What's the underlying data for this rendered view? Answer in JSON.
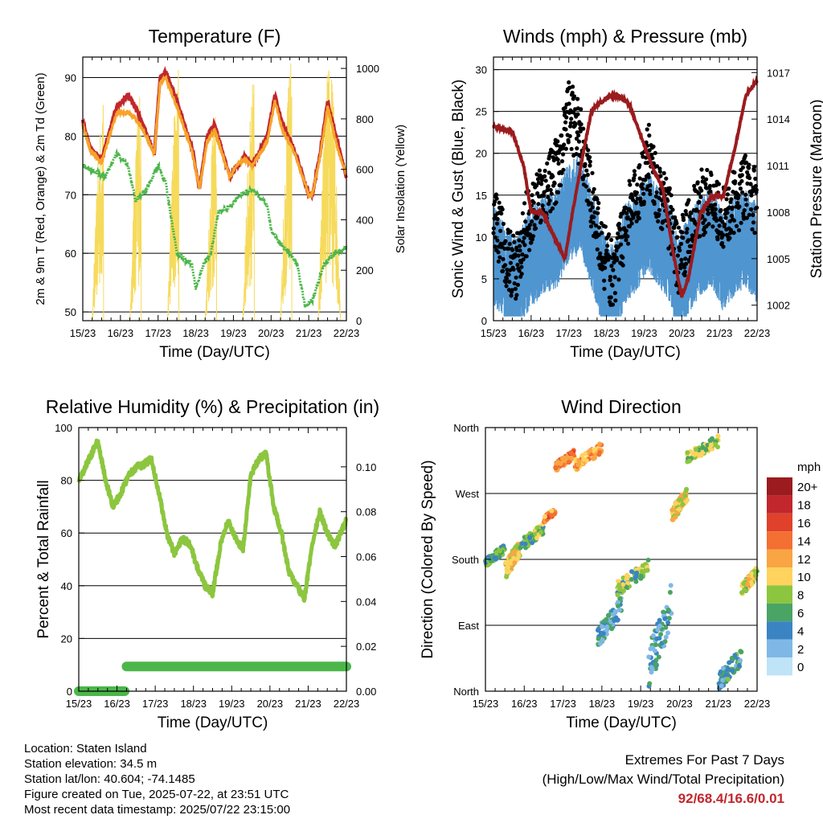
{
  "time_ticks": [
    "15/23",
    "16/23",
    "17/23",
    "18/23",
    "19/23",
    "20/23",
    "21/23",
    "22/23"
  ],
  "chart_data": [
    {
      "id": "temperature",
      "type": "line",
      "title": "Temperature (F)",
      "xlabel": "Time (Day/UTC)",
      "ylabel": "2m & 9m T (Red, Orange) & 2m Td (Green)",
      "ylabel_right": "Solar Insolation (Yellow)",
      "ylim": [
        48.5,
        93.5
      ],
      "ylim_right": [
        0,
        1045
      ],
      "yticks": [
        50,
        60,
        70,
        80,
        90
      ],
      "yticks_right": [
        0,
        200,
        400,
        600,
        800,
        1000
      ],
      "series": [
        {
          "key": "temp_2m",
          "color": "#c1272d",
          "x": [
            0,
            0.2,
            0.5,
            0.9,
            1.2,
            1.4,
            1.6,
            1.9,
            2.05,
            2.2,
            2.5,
            2.9,
            3.1,
            3.3,
            3.5,
            3.9,
            4.1,
            4.3,
            4.5,
            4.9,
            5.1,
            5.3,
            5.6,
            6.0,
            6.1,
            6.3,
            6.5,
            6.8,
            7.0
          ],
          "y": [
            82.5,
            78,
            76,
            85,
            87,
            85,
            82,
            77,
            90,
            91,
            86,
            78,
            71,
            80,
            82,
            73,
            75,
            76.5,
            75,
            80,
            87,
            82,
            78,
            70,
            70,
            77,
            86,
            78,
            73
          ]
        },
        {
          "key": "temp_9m",
          "color": "#f7a32a",
          "x": [
            0,
            0.2,
            0.5,
            0.9,
            1.2,
            1.4,
            1.6,
            1.9,
            2.05,
            2.2,
            2.5,
            2.9,
            3.1,
            3.3,
            3.5,
            3.9,
            4.1,
            4.3,
            4.5,
            4.9,
            5.1,
            5.3,
            5.6,
            6.0,
            6.1,
            6.3,
            6.5,
            6.8,
            7.0
          ],
          "y": [
            82,
            77.5,
            75.5,
            84,
            84,
            83,
            81,
            77,
            89,
            90,
            85,
            77.5,
            71,
            79,
            81,
            73,
            75,
            76,
            75,
            79,
            86,
            81,
            77.5,
            70,
            70,
            76.5,
            85,
            77,
            73.5
          ]
        },
        {
          "key": "dewpoint_2m",
          "color": "#4cb64a",
          "x": [
            0,
            0.3,
            0.6,
            0.9,
            1.2,
            1.4,
            1.7,
            2.0,
            2.2,
            2.5,
            2.9,
            3.0,
            3.2,
            3.4,
            3.6,
            3.9,
            4.2,
            4.5,
            4.9,
            5.0,
            5.2,
            5.5,
            5.7,
            5.9,
            6.1,
            6.4,
            6.7,
            7.0
          ],
          "y": [
            75,
            74,
            73,
            77,
            75,
            69,
            71,
            75,
            72,
            60,
            58,
            54,
            58,
            60,
            67,
            68,
            70,
            71,
            68,
            64,
            62,
            60,
            58,
            51,
            52,
            58,
            60,
            61
          ]
        }
      ],
      "solar": {
        "color": "#f6da5b",
        "peak_days": [
          0.55,
          1.55,
          2.55,
          3.55,
          4.55,
          5.55,
          6.55
        ],
        "peaks": [
          870,
          960,
          1040,
          860,
          970,
          1060,
          1040
        ]
      }
    },
    {
      "id": "wind",
      "type": "line",
      "title": "Winds (mph) & Pressure (mb)",
      "xlabel": "Time (Day/UTC)",
      "ylabel": "Sonic Wind & Gust (Blue, Black)",
      "ylabel_right": "Station Pressure (Maroon)",
      "ylim": [
        0,
        31.5
      ],
      "ylim_right": [
        1001,
        1018
      ],
      "yticks": [
        0,
        5,
        10,
        15,
        20,
        25,
        30
      ],
      "yticks_right": [
        1002,
        1005,
        1008,
        1011,
        1014,
        1017
      ],
      "series": [
        {
          "key": "wind_speed",
          "color": "#4f95d0",
          "x": [
            0,
            0.4,
            0.6,
            0.9,
            1.3,
            1.7,
            2.0,
            2.3,
            2.6,
            2.9,
            3.2,
            3.5,
            3.9,
            4.1,
            4.4,
            4.7,
            4.9,
            5.2,
            5.5,
            5.8,
            6.1,
            6.4,
            6.7,
            7.0
          ],
          "y": [
            8,
            5,
            4,
            7,
            9,
            10,
            13,
            14,
            10,
            5,
            3,
            8,
            10,
            12,
            10,
            8,
            4,
            7,
            9,
            10,
            7,
            9,
            10,
            8
          ]
        },
        {
          "key": "wind_gust",
          "color": "#000000",
          "x": [
            0,
            0.4,
            0.6,
            0.9,
            1.3,
            1.7,
            2.0,
            2.3,
            2.6,
            2.9,
            3.2,
            3.5,
            3.9,
            4.1,
            4.4,
            4.7,
            4.9,
            5.2,
            5.5,
            5.8,
            6.1,
            6.4,
            6.7,
            7.0
          ],
          "y": [
            13,
            7,
            6,
            12,
            15,
            18,
            25,
            22,
            15,
            8,
            5,
            12,
            16,
            20,
            15,
            12,
            7,
            11,
            14,
            15,
            12,
            14,
            16,
            14
          ]
        },
        {
          "key": "pressure",
          "color": "#9b1b1e",
          "axis": "right",
          "x": [
            0,
            0.5,
            0.8,
            1.0,
            1.3,
            1.6,
            1.9,
            2.1,
            2.4,
            2.6,
            2.8,
            3.1,
            3.3,
            3.6,
            3.9,
            4.2,
            4.5,
            4.8,
            5.0,
            5.2,
            5.5,
            5.8,
            6.1,
            6.4,
            6.7,
            7.0
          ],
          "y": [
            1013.5,
            1013.2,
            1011,
            1008,
            1008,
            1006.5,
            1005,
            1008,
            1012,
            1014.5,
            1015,
            1015.5,
            1015.5,
            1015,
            1013,
            1011,
            1009.5,
            1005,
            1002.5,
            1004,
            1008,
            1009,
            1009,
            1012,
            1015.5,
            1016.5
          ]
        }
      ]
    },
    {
      "id": "humidity",
      "type": "line",
      "title": "Relative Humidity (%) & Precipitation (in)",
      "xlabel": "Time (Day/UTC)",
      "ylabel": "Percent & Total Rainfall",
      "ylim": [
        0,
        100
      ],
      "ylim_right": [
        0,
        0.1175
      ],
      "yticks": [
        0,
        20,
        40,
        60,
        80,
        100
      ],
      "yticks_right": [
        0.0,
        0.02,
        0.04,
        0.06,
        0.08,
        0.1
      ],
      "yticks_right_labels": [
        "0.00",
        "0.02",
        "0.04",
        "0.06",
        "0.08",
        "0.10"
      ],
      "series": [
        {
          "key": "rh",
          "color": "#8cc63f",
          "x": [
            0,
            0.2,
            0.5,
            0.7,
            0.9,
            1.1,
            1.3,
            1.5,
            1.7,
            1.9,
            2.1,
            2.3,
            2.5,
            2.7,
            2.9,
            3.1,
            3.3,
            3.5,
            3.7,
            3.9,
            4.1,
            4.3,
            4.5,
            4.7,
            4.9,
            5.1,
            5.3,
            5.5,
            5.7,
            5.9,
            6.1,
            6.3,
            6.5,
            6.7,
            7.0
          ],
          "y": [
            79,
            86,
            95,
            80,
            70,
            75,
            82,
            85,
            86,
            88,
            75,
            60,
            52,
            58,
            56,
            47,
            40,
            37,
            55,
            65,
            58,
            54,
            82,
            88,
            90,
            70,
            60,
            45,
            40,
            35,
            55,
            68,
            60,
            55,
            65
          ]
        },
        {
          "key": "precip",
          "color": "#4cb64a",
          "axis": "right",
          "x": [
            0,
            1.2,
            1.25,
            7.0
          ],
          "y": [
            0,
            0,
            0.011,
            0.011
          ]
        }
      ]
    },
    {
      "id": "direction",
      "type": "scatter",
      "title": "Wind Direction",
      "xlabel": "Time (Day/UTC)",
      "ylabel": "Direction (Colored By Speed)",
      "yticks": [
        "North",
        "East",
        "South",
        "West",
        "North"
      ],
      "ylim": [
        0,
        360
      ],
      "legend_title": "mph",
      "legend_position": "right",
      "legend_levels": [
        "20+",
        "18",
        "16",
        "14",
        "12",
        "10",
        "8",
        "6",
        "4",
        "2",
        "0"
      ],
      "legend_colors": [
        "#9b1b1e",
        "#c1272d",
        "#e0412b",
        "#f36f32",
        "#f9a543",
        "#ffd35e",
        "#8cc63f",
        "#4aa463",
        "#3b84c4",
        "#7fb8e6",
        "#bfe3f7"
      ],
      "clusters": [
        {
          "x": [
            0,
            0.5
          ],
          "y": [
            170,
            200
          ],
          "speed": 6
        },
        {
          "x": [
            0.5,
            0.9
          ],
          "y": [
            150,
            210
          ],
          "speed": 10
        },
        {
          "x": [
            0.9,
            1.5
          ],
          "y": [
            190,
            230
          ],
          "speed": 7
        },
        {
          "x": [
            1.5,
            1.8
          ],
          "y": [
            230,
            250
          ],
          "speed": 13
        },
        {
          "x": [
            1.8,
            2.3
          ],
          "y": [
            300,
            330
          ],
          "speed": 13
        },
        {
          "x": [
            2.3,
            3.0
          ],
          "y": [
            300,
            340
          ],
          "speed": 12
        },
        {
          "x": [
            2.9,
            3.5
          ],
          "y": [
            60,
            130
          ],
          "speed": 4
        },
        {
          "x": [
            3.4,
            4.2
          ],
          "y": [
            130,
            180
          ],
          "speed": 7
        },
        {
          "x": [
            4.2,
            4.8
          ],
          "y": [
            0,
            150
          ],
          "speed": 4
        },
        {
          "x": [
            4.8,
            5.2
          ],
          "y": [
            230,
            280
          ],
          "speed": 10
        },
        {
          "x": [
            5.2,
            6.0
          ],
          "y": [
            310,
            350
          ],
          "speed": 8
        },
        {
          "x": [
            6.0,
            6.6
          ],
          "y": [
            0,
            60
          ],
          "speed": 5
        },
        {
          "x": [
            6.6,
            7.0
          ],
          "y": [
            130,
            170
          ],
          "speed": 9
        }
      ]
    }
  ],
  "info": {
    "location": "Location: Staten Island",
    "elevation": "Station elevation: 34.5 m",
    "latlon": "Station lat/lon: 40.604; -74.1485",
    "created": "Figure created on Tue, 2025-07-22, at 23:51 UTC",
    "recent": "Most recent data timestamp: 2025/07/22 23:15:00"
  },
  "extremes": {
    "title": "Extremes For Past 7 Days",
    "subtitle": "(High/Low/Max Wind/Total Precipitation)",
    "value": "92/68.4/16.6/0.01"
  }
}
